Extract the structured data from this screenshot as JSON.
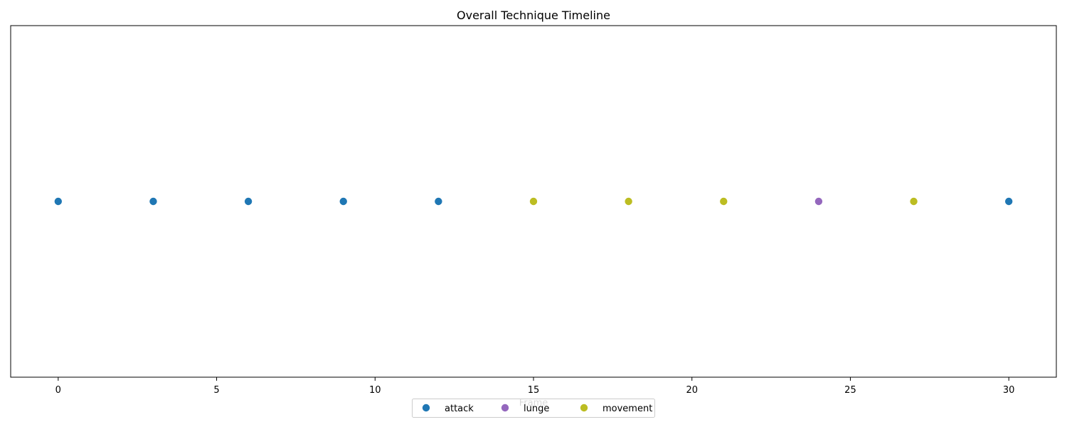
{
  "chart_data": {
    "type": "scatter",
    "title": "Overall Technique Timeline",
    "xlabel": "Frame",
    "ylabel": "",
    "xlim": [
      -1.5,
      31.5
    ],
    "xticks": [
      0,
      5,
      10,
      15,
      20,
      25,
      30
    ],
    "y_ticks_visible": false,
    "grid": false,
    "legend": {
      "placement": "bottom-center",
      "columns": 3
    },
    "series": [
      {
        "name": "attack",
        "color": "#1f77b4",
        "x": [
          0,
          3,
          6,
          9,
          12,
          30
        ]
      },
      {
        "name": "lunge",
        "color": "#9467bd",
        "x": [
          24
        ]
      },
      {
        "name": "movement",
        "color": "#bcbd22",
        "x": [
          15,
          18,
          21,
          27
        ]
      }
    ]
  }
}
